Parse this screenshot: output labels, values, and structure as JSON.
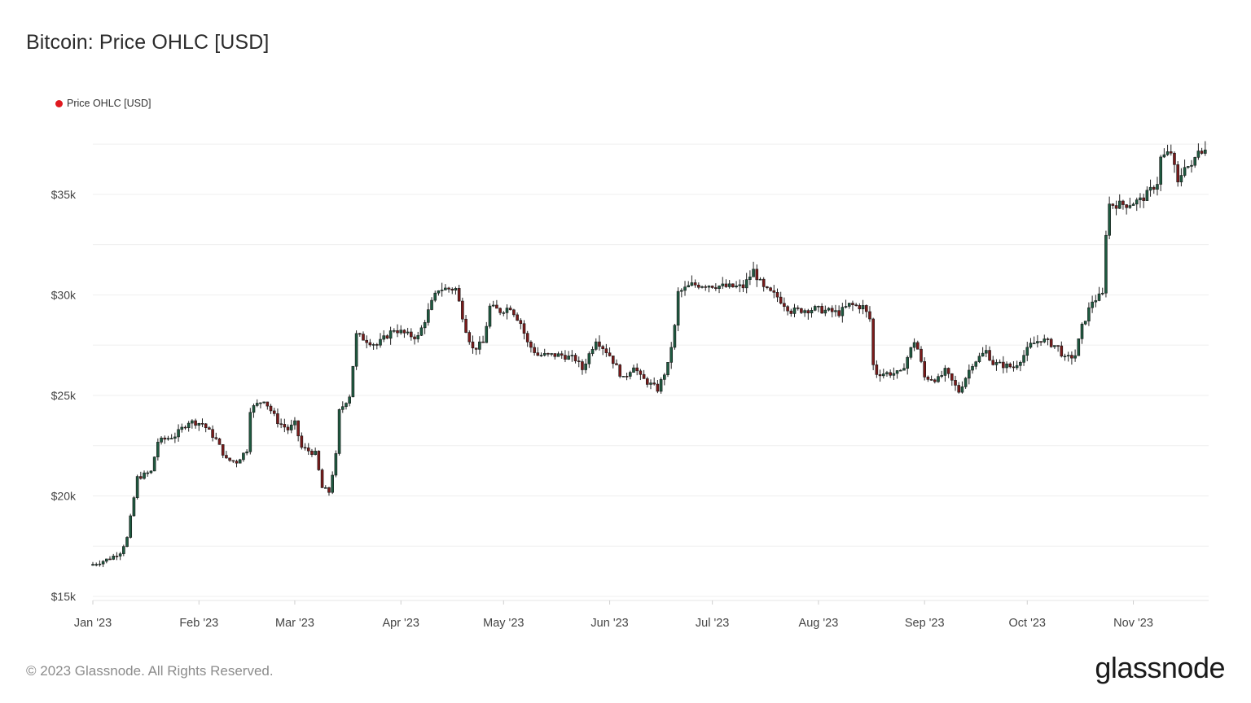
{
  "chart_data": {
    "type": "candlestick",
    "title": "Bitcoin: Price OHLC [USD]",
    "legend": [
      {
        "label": "Price OHLC [USD]",
        "color": "#e0191f"
      }
    ],
    "legend_position": "top-left",
    "grid": true,
    "y_ticks": [
      {
        "value": 15000,
        "label": "$15k"
      },
      {
        "value": 20000,
        "label": "$20k"
      },
      {
        "value": 25000,
        "label": "$25k"
      },
      {
        "value": 30000,
        "label": "$30k"
      },
      {
        "value": 35000,
        "label": "$35k"
      }
    ],
    "x_ticks": [
      {
        "date": "2023-01-01",
        "label": "Jan '23"
      },
      {
        "date": "2023-02-01",
        "label": "Feb '23"
      },
      {
        "date": "2023-03-01",
        "label": "Mar '23"
      },
      {
        "date": "2023-04-01",
        "label": "Apr '23"
      },
      {
        "date": "2023-05-01",
        "label": "May '23"
      },
      {
        "date": "2023-06-01",
        "label": "Jun '23"
      },
      {
        "date": "2023-07-01",
        "label": "Jul '23"
      },
      {
        "date": "2023-08-01",
        "label": "Aug '23"
      },
      {
        "date": "2023-09-01",
        "label": "Sep '23"
      },
      {
        "date": "2023-10-01",
        "label": "Oct '23"
      },
      {
        "date": "2023-11-01",
        "label": "Nov '23"
      }
    ],
    "x_range": [
      "2023-01-01",
      "2023-11-23"
    ],
    "y_range": [
      14800,
      39000
    ],
    "up_color": "#1e5a40",
    "down_color": "#7a1a1a",
    "close_path": [
      [
        "2023-01-01",
        16600
      ],
      [
        "2023-01-03",
        16700
      ],
      [
        "2023-01-06",
        16900
      ],
      [
        "2023-01-09",
        17200
      ],
      [
        "2023-01-11",
        17900
      ],
      [
        "2023-01-12",
        18900
      ],
      [
        "2023-01-13",
        19900
      ],
      [
        "2023-01-14",
        20900
      ],
      [
        "2023-01-18",
        21200
      ],
      [
        "2023-01-20",
        22700
      ],
      [
        "2023-01-25",
        23000
      ],
      [
        "2023-01-29",
        23700
      ],
      [
        "2023-02-02",
        23600
      ],
      [
        "2023-02-06",
        22800
      ],
      [
        "2023-02-09",
        21800
      ],
      [
        "2023-02-12",
        21700
      ],
      [
        "2023-02-15",
        22300
      ],
      [
        "2023-02-16",
        24300
      ],
      [
        "2023-02-20",
        24800
      ],
      [
        "2023-02-24",
        23700
      ],
      [
        "2023-02-27",
        23300
      ],
      [
        "2023-03-01",
        23600
      ],
      [
        "2023-03-03",
        22400
      ],
      [
        "2023-03-07",
        22100
      ],
      [
        "2023-03-09",
        20400
      ],
      [
        "2023-03-11",
        20200
      ],
      [
        "2023-03-13",
        22000
      ],
      [
        "2023-03-14",
        24200
      ],
      [
        "2023-03-17",
        25000
      ],
      [
        "2023-03-19",
        28000
      ],
      [
        "2023-03-25",
        27500
      ],
      [
        "2023-03-30",
        28300
      ],
      [
        "2023-04-03",
        28000
      ],
      [
        "2023-04-06",
        27900
      ],
      [
        "2023-04-10",
        29600
      ],
      [
        "2023-04-12",
        30300
      ],
      [
        "2023-04-17",
        30300
      ],
      [
        "2023-04-20",
        28300
      ],
      [
        "2023-04-22",
        27300
      ],
      [
        "2023-04-25",
        27600
      ],
      [
        "2023-04-27",
        29400
      ],
      [
        "2023-04-30",
        29200
      ],
      [
        "2023-05-03",
        29400
      ],
      [
        "2023-05-06",
        28600
      ],
      [
        "2023-05-08",
        27600
      ],
      [
        "2023-05-11",
        27000
      ],
      [
        "2023-05-14",
        27000
      ],
      [
        "2023-05-18",
        27000
      ],
      [
        "2023-05-22",
        26800
      ],
      [
        "2023-05-24",
        26300
      ],
      [
        "2023-05-28",
        27800
      ],
      [
        "2023-06-01",
        27000
      ],
      [
        "2023-06-05",
        25800
      ],
      [
        "2023-06-08",
        26500
      ],
      [
        "2023-06-10",
        25900
      ],
      [
        "2023-06-15",
        25300
      ],
      [
        "2023-06-18",
        26500
      ],
      [
        "2023-06-20",
        28400
      ],
      [
        "2023-06-21",
        30100
      ],
      [
        "2023-06-25",
        30500
      ],
      [
        "2023-06-30",
        30500
      ],
      [
        "2023-07-05",
        30400
      ],
      [
        "2023-07-10",
        30400
      ],
      [
        "2023-07-13",
        31200
      ],
      [
        "2023-07-16",
        30300
      ],
      [
        "2023-07-20",
        29900
      ],
      [
        "2023-07-24",
        29200
      ],
      [
        "2023-07-31",
        29300
      ],
      [
        "2023-08-07",
        29100
      ],
      [
        "2023-08-10",
        29500
      ],
      [
        "2023-08-14",
        29400
      ],
      [
        "2023-08-16",
        28800
      ],
      [
        "2023-08-17",
        26500
      ],
      [
        "2023-08-18",
        26100
      ],
      [
        "2023-08-25",
        26100
      ],
      [
        "2023-08-29",
        27700
      ],
      [
        "2023-08-30",
        27300
      ],
      [
        "2023-09-01",
        25900
      ],
      [
        "2023-09-05",
        25800
      ],
      [
        "2023-09-07",
        26200
      ],
      [
        "2023-09-11",
        25200
      ],
      [
        "2023-09-15",
        26600
      ],
      [
        "2023-09-19",
        27200
      ],
      [
        "2023-09-21",
        26600
      ],
      [
        "2023-09-27",
        26400
      ],
      [
        "2023-09-30",
        27000
      ],
      [
        "2023-10-02",
        27500
      ],
      [
        "2023-10-05",
        27800
      ],
      [
        "2023-10-10",
        27400
      ],
      [
        "2023-10-12",
        26800
      ],
      [
        "2023-10-15",
        27000
      ],
      [
        "2023-10-17",
        28400
      ],
      [
        "2023-10-20",
        29700
      ],
      [
        "2023-10-23",
        30000
      ],
      [
        "2023-10-24",
        33100
      ],
      [
        "2023-10-25",
        34500
      ],
      [
        "2023-10-30",
        34500
      ],
      [
        "2023-11-03",
        34700
      ],
      [
        "2023-11-05",
        35000
      ],
      [
        "2023-11-08",
        35600
      ],
      [
        "2023-11-09",
        36800
      ],
      [
        "2023-11-12",
        37100
      ],
      [
        "2023-11-14",
        35500
      ],
      [
        "2023-11-16",
        36500
      ],
      [
        "2023-11-18",
        36300
      ],
      [
        "2023-11-20",
        37300
      ],
      [
        "2023-11-22",
        37200
      ]
    ]
  },
  "footer": {
    "copyright": "© 2023 Glassnode. All Rights Reserved."
  },
  "brand": {
    "logo_text": "glassnode"
  }
}
